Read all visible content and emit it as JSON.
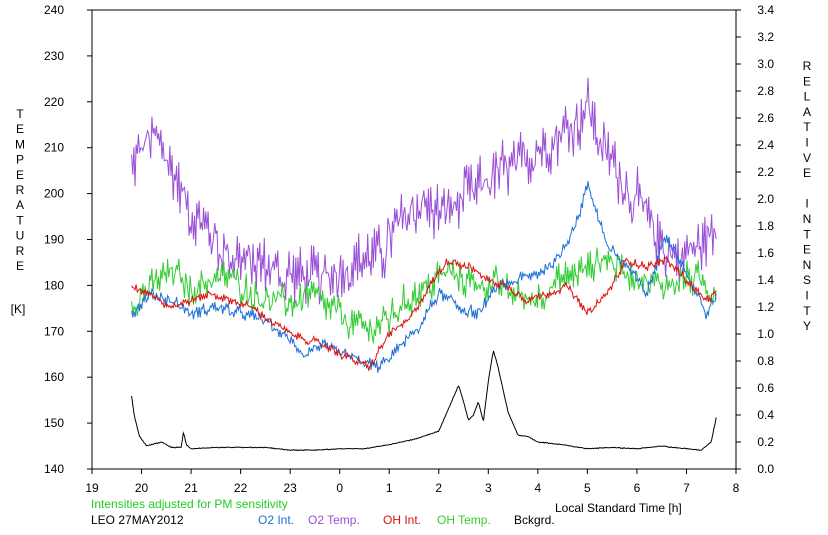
{
  "chart_data": {
    "type": "line",
    "left_axis": {
      "label_letters": [
        "T",
        "E",
        "M",
        "P",
        "E",
        "R",
        "A",
        "T",
        "U",
        "R",
        "E"
      ],
      "unit": "[K]",
      "ylim": [
        140,
        240
      ],
      "ticks": [
        140,
        150,
        160,
        170,
        180,
        190,
        200,
        210,
        220,
        230,
        240
      ],
      "tick_labels": [
        "140",
        "150",
        "160",
        "170",
        "180",
        "190",
        "200",
        "210",
        "220",
        "230",
        "240"
      ]
    },
    "right_axis": {
      "label_letters": [
        "R",
        "E",
        "L",
        "A",
        "T",
        "I",
        "V",
        "E",
        " ",
        "I",
        "N",
        "T",
        "E",
        "N",
        "S",
        "I",
        "T",
        "Y"
      ],
      "ylim": [
        0.0,
        3.4
      ],
      "ticks": [
        0.0,
        0.2,
        0.4,
        0.6,
        0.8,
        1.0,
        1.2,
        1.4,
        1.6,
        1.8,
        2.0,
        2.2,
        2.4,
        2.6,
        2.8,
        3.0,
        3.2,
        3.4
      ],
      "tick_labels": [
        "0.0",
        "0.2",
        "0.4",
        "0.6",
        "0.8",
        "1.0",
        "1.2",
        "1.4",
        "1.6",
        "1.8",
        "2.0",
        "2.2",
        "2.4",
        "2.6",
        "2.8",
        "3.0",
        "3.2",
        "3.4"
      ]
    },
    "x_axis": {
      "label": "Local Standard Time [h]",
      "xlim": [
        19,
        32
      ],
      "ticks": [
        19,
        20,
        21,
        22,
        23,
        24,
        25,
        26,
        27,
        28,
        29,
        30,
        31,
        32
      ],
      "tick_labels": [
        "19",
        "20",
        "21",
        "22",
        "23",
        "0",
        "1",
        "2",
        "3",
        "4",
        "5",
        "6",
        "7",
        "8"
      ]
    },
    "note": "Intensities adjusted for PM sensitivity",
    "station": "LEO 27MAY2012",
    "grid": false,
    "series": [
      {
        "name": "O2 Int.",
        "axis": "right",
        "color": "#1e6fd9",
        "noise": 0.06,
        "x": [
          19.8,
          20.2,
          20.6,
          21.0,
          21.5,
          22.0,
          22.5,
          23.0,
          23.3,
          23.6,
          24.0,
          24.4,
          24.8,
          25.2,
          25.6,
          26.0,
          26.4,
          26.8,
          27.2,
          27.6,
          28.0,
          28.4,
          28.8,
          29.0,
          29.2,
          29.4,
          29.8,
          30.2,
          30.6,
          31.0,
          31.4,
          31.6
        ],
        "y": [
          1.15,
          1.3,
          1.25,
          1.15,
          1.2,
          1.15,
          1.1,
          0.95,
          0.85,
          0.92,
          0.85,
          0.8,
          0.75,
          0.9,
          1.05,
          1.3,
          1.2,
          1.15,
          1.35,
          1.4,
          1.45,
          1.55,
          1.85,
          2.1,
          1.9,
          1.65,
          1.5,
          1.3,
          1.75,
          1.45,
          1.15,
          1.25
        ]
      },
      {
        "name": "O2 Temp.",
        "axis": "left",
        "color": "#9a4fd6",
        "noise": 8.0,
        "x": [
          19.8,
          20.1,
          20.4,
          20.7,
          21.0,
          21.3,
          21.6,
          22.0,
          22.4,
          22.8,
          23.2,
          23.6,
          24.0,
          24.4,
          24.8,
          25.2,
          25.6,
          26.0,
          26.4,
          26.8,
          27.2,
          27.6,
          28.0,
          28.4,
          28.8,
          29.0,
          29.3,
          29.6,
          30.0,
          30.4,
          30.8,
          31.2,
          31.6
        ],
        "y": [
          205,
          212,
          210,
          203,
          196,
          193,
          188,
          186,
          184,
          183,
          182,
          181,
          183,
          186,
          187,
          193,
          198,
          196,
          198,
          201,
          204,
          206,
          210,
          212,
          216,
          219,
          210,
          205,
          198,
          191,
          186,
          188,
          192
        ]
      },
      {
        "name": "OH Int.",
        "axis": "right",
        "color": "#dd1111",
        "noise": 0.04,
        "x": [
          19.8,
          20.2,
          20.6,
          21.0,
          21.4,
          21.8,
          22.2,
          22.6,
          23.0,
          23.4,
          23.8,
          24.2,
          24.6,
          25.0,
          25.4,
          25.8,
          26.2,
          26.6,
          27.0,
          27.4,
          27.8,
          28.2,
          28.6,
          29.0,
          29.4,
          29.8,
          30.2,
          30.6,
          31.0,
          31.4,
          31.6
        ],
        "y": [
          1.35,
          1.3,
          1.2,
          1.25,
          1.3,
          1.25,
          1.2,
          1.1,
          1.0,
          0.95,
          0.9,
          0.82,
          0.75,
          1.0,
          1.1,
          1.35,
          1.55,
          1.5,
          1.4,
          1.35,
          1.25,
          1.3,
          1.35,
          1.15,
          1.3,
          1.55,
          1.5,
          1.55,
          1.4,
          1.25,
          1.3
        ]
      },
      {
        "name": "OH Temp.",
        "axis": "left",
        "color": "#33cc33",
        "noise": 4.5,
        "x": [
          19.8,
          20.2,
          20.6,
          21.0,
          21.4,
          21.8,
          22.2,
          22.6,
          23.0,
          23.4,
          23.8,
          24.2,
          24.6,
          25.0,
          25.4,
          25.8,
          26.2,
          26.6,
          27.0,
          27.4,
          27.8,
          28.2,
          28.6,
          29.0,
          29.4,
          29.8,
          30.2,
          30.6,
          31.0,
          31.4,
          31.6
        ],
        "y": [
          176,
          180,
          183,
          179,
          181,
          182,
          178,
          177,
          176,
          178,
          175,
          172,
          170,
          173,
          177,
          180,
          183,
          181,
          180,
          179,
          177,
          179,
          182,
          184,
          186,
          183,
          181,
          180,
          182,
          180,
          178
        ]
      },
      {
        "name": "Bckgrd.",
        "axis": "right",
        "color": "#000000",
        "noise": 0.008,
        "x": [
          19.8,
          19.85,
          19.95,
          20.1,
          20.4,
          20.6,
          20.8,
          20.85,
          20.9,
          21.0,
          21.5,
          22.0,
          22.5,
          23.0,
          23.5,
          24.0,
          24.5,
          25.0,
          25.5,
          26.0,
          26.2,
          26.4,
          26.5,
          26.6,
          26.7,
          26.8,
          26.9,
          27.0,
          27.1,
          27.2,
          27.4,
          27.6,
          27.8,
          28.0,
          28.5,
          29.0,
          29.5,
          30.0,
          30.5,
          31.0,
          31.3,
          31.5,
          31.6
        ],
        "y": [
          0.54,
          0.4,
          0.25,
          0.17,
          0.2,
          0.16,
          0.16,
          0.28,
          0.18,
          0.15,
          0.16,
          0.16,
          0.16,
          0.14,
          0.14,
          0.15,
          0.15,
          0.18,
          0.22,
          0.28,
          0.45,
          0.62,
          0.5,
          0.36,
          0.4,
          0.5,
          0.35,
          0.65,
          0.88,
          0.75,
          0.42,
          0.25,
          0.24,
          0.2,
          0.18,
          0.15,
          0.16,
          0.15,
          0.17,
          0.15,
          0.14,
          0.2,
          0.38
        ]
      }
    ]
  }
}
